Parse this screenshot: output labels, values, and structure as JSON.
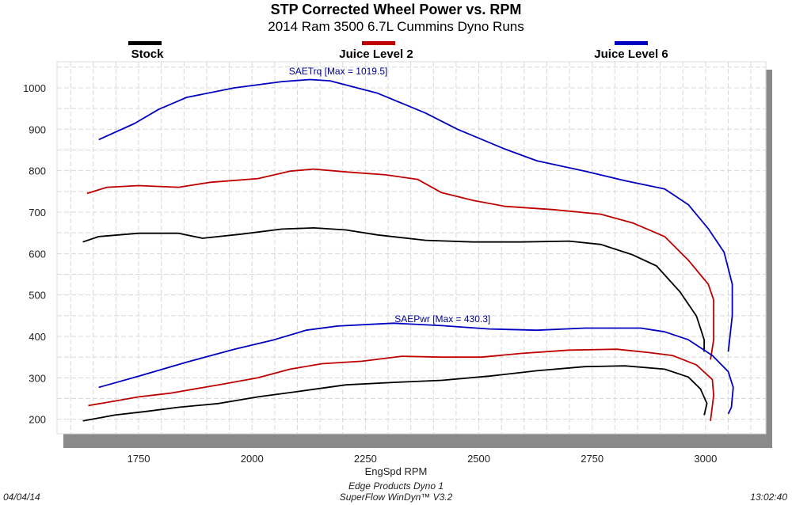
{
  "chart_data": {
    "type": "line",
    "title": "STP Corrected Wheel Power vs. RPM",
    "subtitle": "2014 Ram 3500 6.7L Cummins Dyno Runs",
    "xlabel": "EngSpd RPM",
    "ylabel": "",
    "xlim": [
      1570,
      3133
    ],
    "ylim": [
      165,
      1063
    ],
    "xticks": [
      1750,
      2000,
      2250,
      2500,
      2750,
      3000
    ],
    "yticks": [
      200,
      300,
      400,
      500,
      600,
      700,
      800,
      900,
      1000
    ],
    "grid": true,
    "legend_placement": "top",
    "legend": [
      {
        "name": "Stock",
        "color": "#000000"
      },
      {
        "name": "Juice Level 2",
        "color": "#c00000"
      },
      {
        "name": "Juice Level 6",
        "color": "#0000c0"
      }
    ],
    "annotations": [
      {
        "text": "SAETrq [Max = 1019.5]",
        "x": 2190,
        "y": 1032,
        "color": "#00008b"
      },
      {
        "text": "SAEPwr [Max = 430.3]",
        "x": 2420,
        "y": 434,
        "color": "#00008b"
      }
    ],
    "series": [
      {
        "name": "Juice Level 6",
        "metric": "SAETrq",
        "color": "#0000c0",
        "points": [
          [
            1662,
            875
          ],
          [
            1741,
            914
          ],
          [
            1794,
            948
          ],
          [
            1856,
            977
          ],
          [
            1961,
            1000
          ],
          [
            2066,
            1015
          ],
          [
            2128,
            1020
          ],
          [
            2172,
            1017
          ],
          [
            2277,
            987
          ],
          [
            2383,
            939
          ],
          [
            2453,
            900
          ],
          [
            2558,
            852
          ],
          [
            2628,
            824
          ],
          [
            2734,
            799
          ],
          [
            2822,
            776
          ],
          [
            2910,
            756
          ],
          [
            2962,
            718
          ],
          [
            3006,
            660
          ],
          [
            3041,
            603
          ],
          [
            3059,
            526
          ],
          [
            3059,
            450
          ],
          [
            3050,
            363
          ]
        ]
      },
      {
        "name": "Juice Level 2",
        "metric": "SAETrq",
        "color": "#c00000",
        "points": [
          [
            1636,
            745
          ],
          [
            1680,
            760
          ],
          [
            1750,
            764
          ],
          [
            1838,
            760
          ],
          [
            1908,
            772
          ],
          [
            2013,
            781
          ],
          [
            2084,
            799
          ],
          [
            2136,
            804
          ],
          [
            2207,
            797
          ],
          [
            2295,
            790
          ],
          [
            2365,
            779
          ],
          [
            2418,
            747
          ],
          [
            2488,
            728
          ],
          [
            2558,
            714
          ],
          [
            2664,
            706
          ],
          [
            2769,
            695
          ],
          [
            2839,
            674
          ],
          [
            2910,
            641
          ],
          [
            2962,
            584
          ],
          [
            3006,
            526
          ],
          [
            3018,
            488
          ],
          [
            3018,
            392
          ],
          [
            3011,
            344
          ]
        ]
      },
      {
        "name": "Stock",
        "metric": "SAETrq",
        "color": "#000000",
        "points": [
          [
            1627,
            628
          ],
          [
            1662,
            641
          ],
          [
            1750,
            649
          ],
          [
            1838,
            649
          ],
          [
            1891,
            637
          ],
          [
            1978,
            647
          ],
          [
            2066,
            659
          ],
          [
            2136,
            662
          ],
          [
            2207,
            657
          ],
          [
            2277,
            645
          ],
          [
            2383,
            632
          ],
          [
            2488,
            628
          ],
          [
            2593,
            628
          ],
          [
            2699,
            630
          ],
          [
            2769,
            622
          ],
          [
            2839,
            597
          ],
          [
            2892,
            570
          ],
          [
            2944,
            507
          ],
          [
            2980,
            449
          ],
          [
            2997,
            392
          ],
          [
            2997,
            363
          ]
        ]
      },
      {
        "name": "Juice Level 6",
        "metric": "SAEPwr",
        "color": "#0000c0",
        "points": [
          [
            1662,
            277
          ],
          [
            1750,
            304
          ],
          [
            1856,
            338
          ],
          [
            1961,
            369
          ],
          [
            2049,
            392
          ],
          [
            2119,
            415
          ],
          [
            2189,
            425
          ],
          [
            2277,
            430
          ],
          [
            2312,
            432
          ],
          [
            2418,
            426
          ],
          [
            2523,
            418
          ],
          [
            2628,
            415
          ],
          [
            2734,
            420
          ],
          [
            2857,
            420
          ],
          [
            2910,
            411
          ],
          [
            2962,
            392
          ],
          [
            3015,
            354
          ],
          [
            3050,
            315
          ],
          [
            3061,
            277
          ],
          [
            3057,
            229
          ],
          [
            3050,
            213
          ]
        ]
      },
      {
        "name": "Juice Level 2",
        "metric": "SAEPwr",
        "color": "#c00000",
        "points": [
          [
            1639,
            233
          ],
          [
            1697,
            244
          ],
          [
            1750,
            254
          ],
          [
            1820,
            263
          ],
          [
            1926,
            283
          ],
          [
            2013,
            300
          ],
          [
            2084,
            321
          ],
          [
            2154,
            334
          ],
          [
            2242,
            340
          ],
          [
            2330,
            352
          ],
          [
            2418,
            350
          ],
          [
            2506,
            350
          ],
          [
            2593,
            359
          ],
          [
            2699,
            367
          ],
          [
            2804,
            369
          ],
          [
            2875,
            361
          ],
          [
            2927,
            354
          ],
          [
            2980,
            331
          ],
          [
            3015,
            296
          ],
          [
            3018,
            258
          ],
          [
            3011,
            196
          ]
        ]
      },
      {
        "name": "Stock",
        "metric": "SAEPwr",
        "color": "#000000",
        "points": [
          [
            1627,
            196
          ],
          [
            1697,
            210
          ],
          [
            1768,
            219
          ],
          [
            1838,
            229
          ],
          [
            1926,
            238
          ],
          [
            2013,
            254
          ],
          [
            2101,
            267
          ],
          [
            2207,
            283
          ],
          [
            2312,
            289
          ],
          [
            2418,
            294
          ],
          [
            2523,
            304
          ],
          [
            2628,
            317
          ],
          [
            2734,
            327
          ],
          [
            2822,
            329
          ],
          [
            2910,
            321
          ],
          [
            2962,
            302
          ],
          [
            2989,
            273
          ],
          [
            3003,
            238
          ],
          [
            2997,
            210
          ]
        ]
      }
    ]
  },
  "footer": {
    "date": "04/04/14",
    "line1": "Edge Products Dyno 1",
    "line2": "SuperFlow WinDyn™ V3.2",
    "time": "13:02:40"
  }
}
